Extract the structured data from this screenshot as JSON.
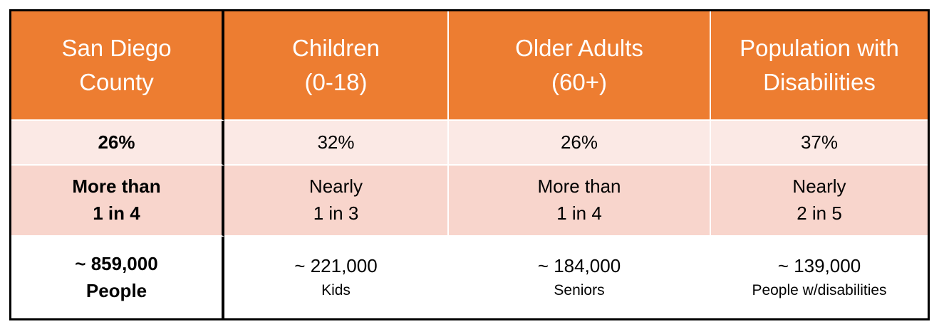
{
  "table": {
    "header": [
      [
        "San Diego",
        "County"
      ],
      [
        "Children",
        "(0-18)"
      ],
      [
        "Older Adults",
        "(60+)"
      ],
      [
        "Population with",
        "Disabilities"
      ]
    ],
    "rows": [
      [
        [
          "26%"
        ],
        [
          "32%"
        ],
        [
          "26%"
        ],
        [
          "37%"
        ]
      ],
      [
        [
          "More than",
          "1 in 4"
        ],
        [
          "Nearly",
          "1 in 3"
        ],
        [
          "More than",
          "1 in 4"
        ],
        [
          "Nearly",
          "2 in 5"
        ]
      ],
      [
        [
          "~ 859,000",
          "People"
        ],
        [
          "~ 221,000",
          "Kids"
        ],
        [
          "~ 184,000",
          "Seniors"
        ],
        [
          "~ 139,000",
          "People w/disabilities"
        ]
      ]
    ]
  }
}
